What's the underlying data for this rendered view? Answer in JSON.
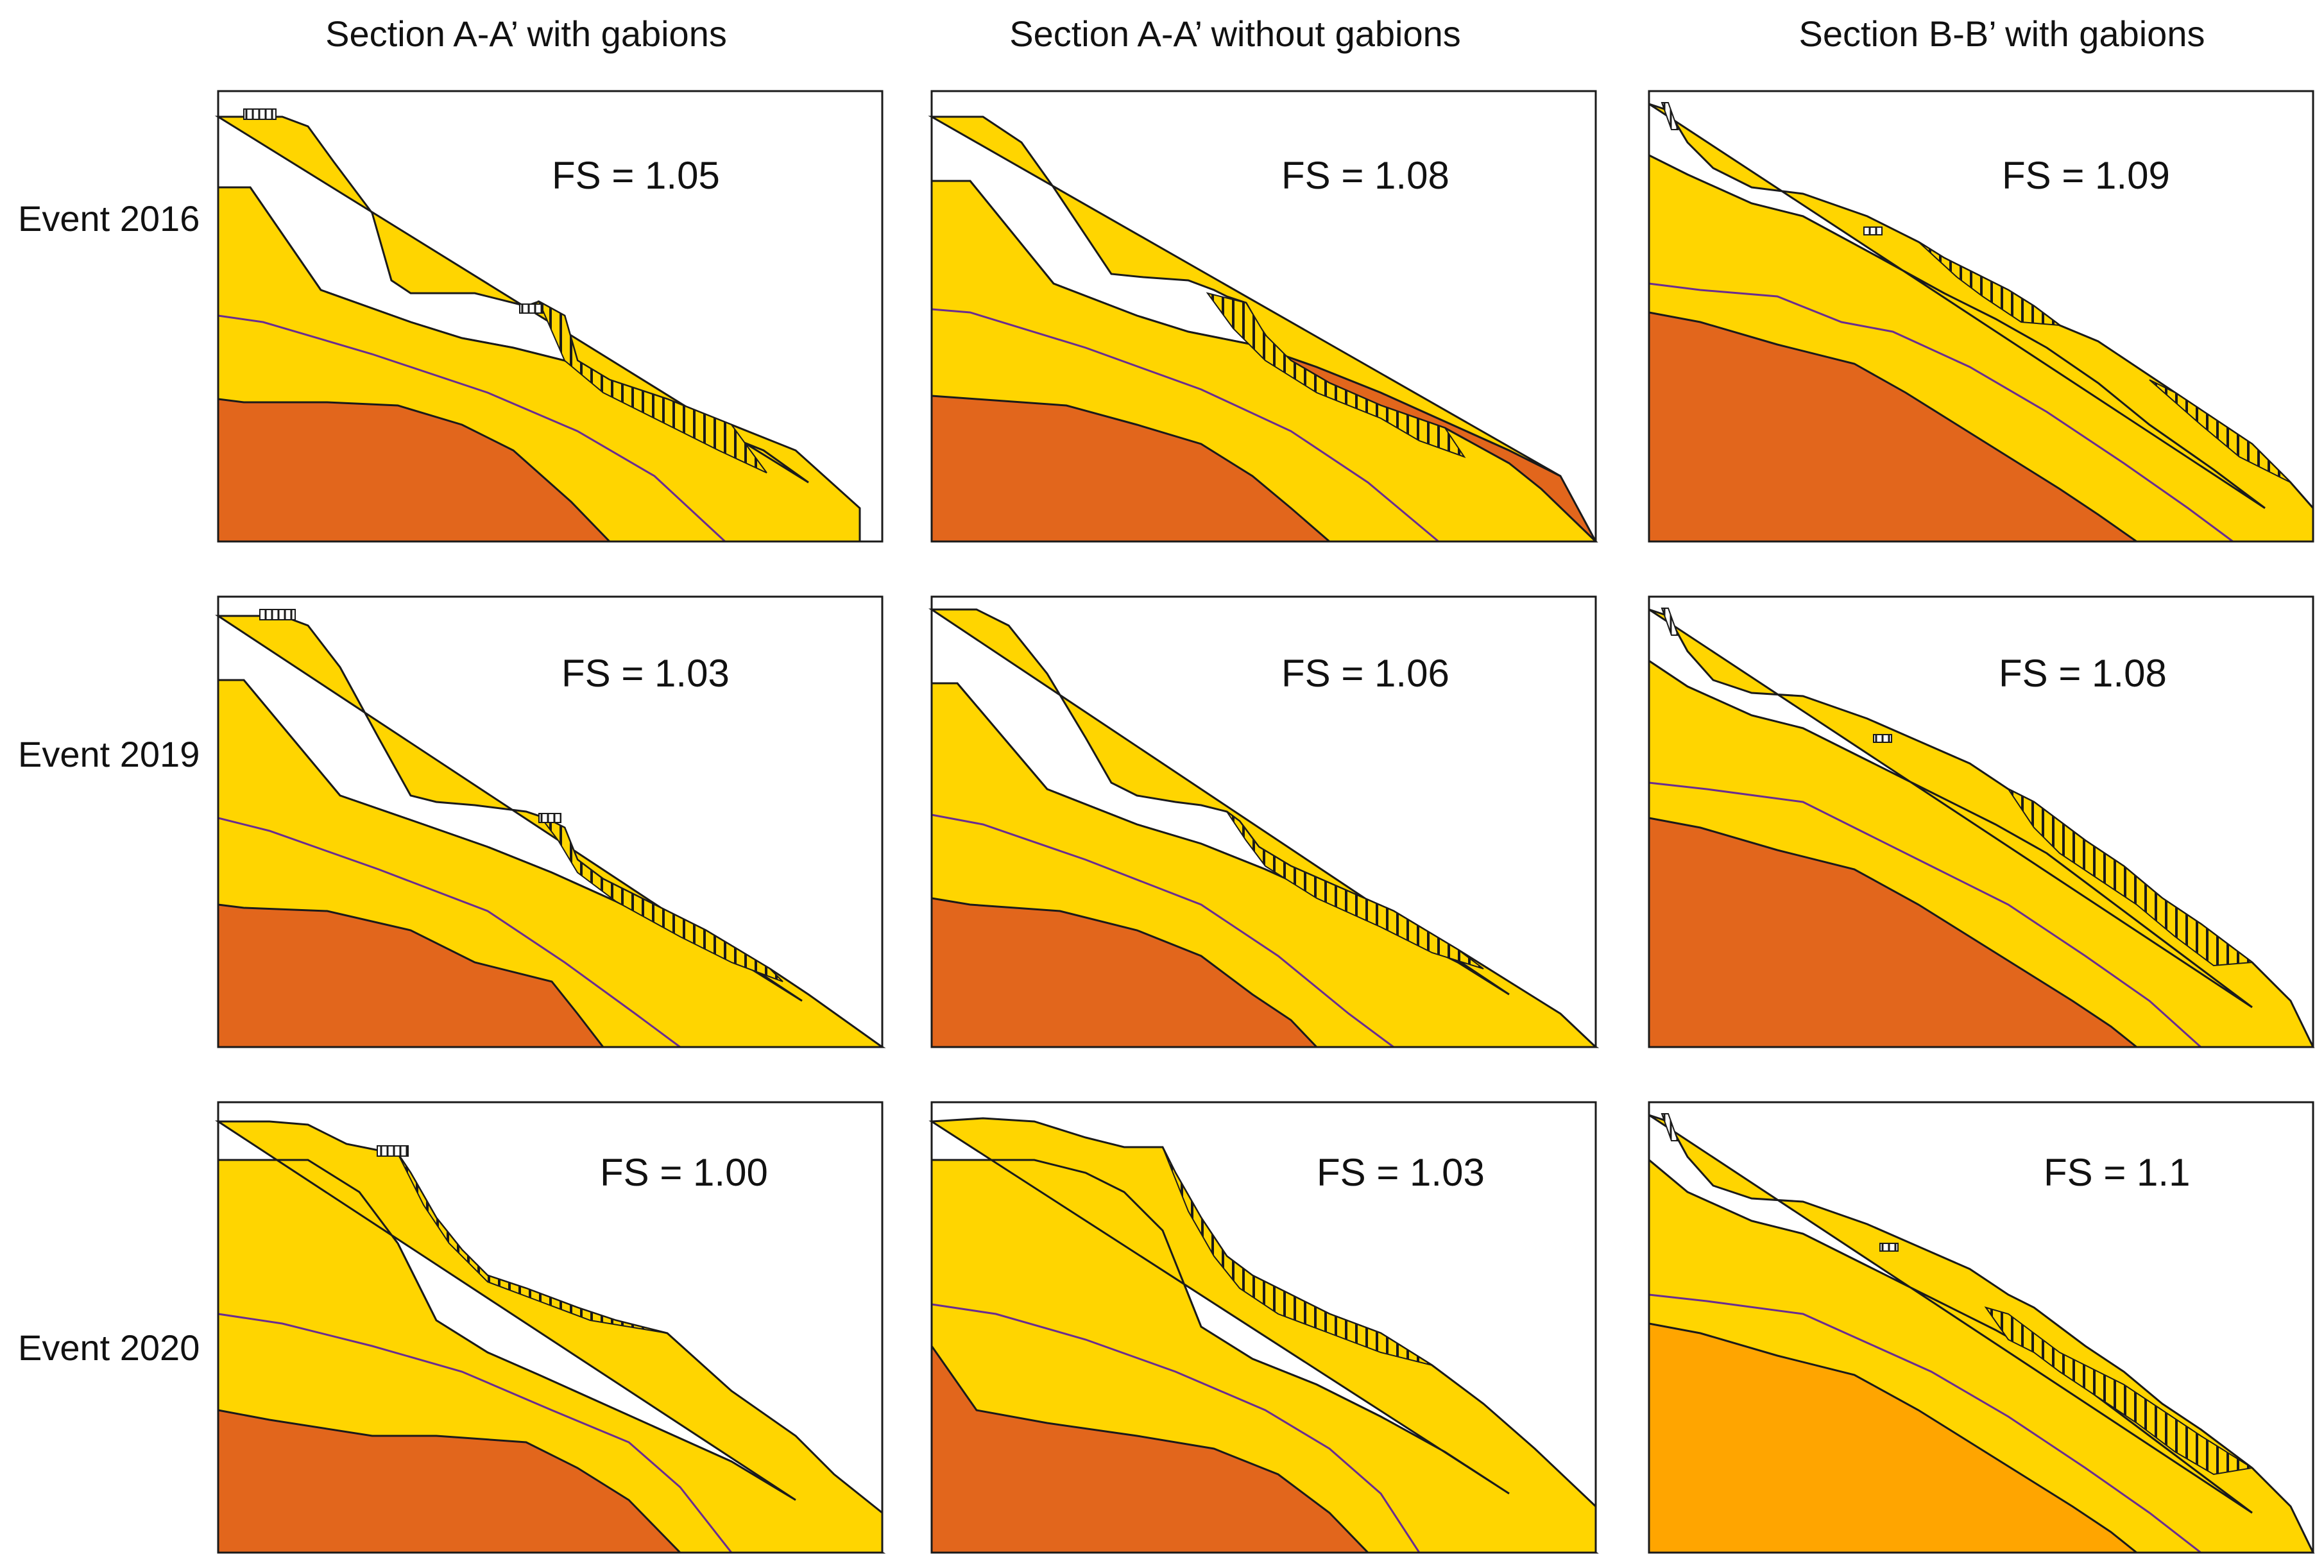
{
  "figure": {
    "columns": [
      "Section A-A’ with gabions",
      "Section A-A’ without gabions",
      "Section B-B’ with gabions"
    ],
    "rows": [
      "Event 2016",
      "Event 2019",
      "Event 2020"
    ],
    "panels": [
      {
        "row": 0,
        "col": 0,
        "fs": "FS = 1.05"
      },
      {
        "row": 0,
        "col": 1,
        "fs": "FS = 1.08"
      },
      {
        "row": 0,
        "col": 2,
        "fs": "FS = 1.09"
      },
      {
        "row": 1,
        "col": 0,
        "fs": "FS = 1.03"
      },
      {
        "row": 1,
        "col": 1,
        "fs": "FS = 1.06"
      },
      {
        "row": 1,
        "col": 2,
        "fs": "FS = 1.08"
      },
      {
        "row": 2,
        "col": 0,
        "fs": "FS = 1.00"
      },
      {
        "row": 2,
        "col": 1,
        "fs": "FS = 1.03"
      },
      {
        "row": 2,
        "col": 2,
        "fs": "FS = 1.1"
      }
    ]
  },
  "colors": {
    "upper_layer": "#FFD500",
    "lower_layer": "#E2661C",
    "lower_layer_alt": "#FFA500",
    "interface_line": "#6A2C91",
    "outline": "#1a1a1a",
    "hatch": "#1a1a1a"
  }
}
